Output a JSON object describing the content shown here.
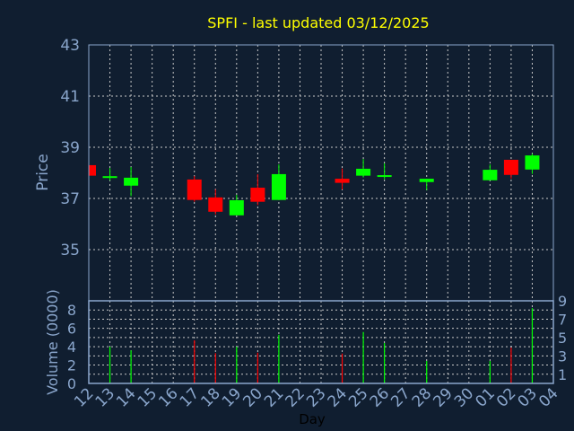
{
  "chart_data": {
    "type": "candlestick",
    "title": "SPFI - last updated 03/12/2025",
    "xlabel": "Day",
    "ylabel": "Price",
    "volume_ylabel": "Volume (0000)",
    "price_ylim": [
      33,
      43
    ],
    "price_ticks": [
      "35",
      "37",
      "39",
      "41",
      "43"
    ],
    "volume_ylim": [
      0,
      9
    ],
    "volume_ticks": [
      "0",
      "1",
      "2",
      "3",
      "4",
      "5",
      "6",
      "7",
      "8",
      "9"
    ],
    "x_ticks": [
      "12",
      "13",
      "14",
      "15",
      "16",
      "17",
      "18",
      "19",
      "20",
      "21",
      "22",
      "23",
      "24",
      "25",
      "26",
      "27",
      "28",
      "29",
      "30",
      "01",
      "02",
      "03",
      "04"
    ],
    "grid": true,
    "colors": {
      "up": "#00ff00",
      "down": "#ff0000",
      "grid": "#c8c8c8",
      "axis": "#8aa6cc",
      "background": "#101e30"
    },
    "candles": [
      {
        "day": "12",
        "open": 38.3,
        "high": 38.3,
        "low": 37.89,
        "close": 37.89,
        "volume": 0
      },
      {
        "day": "13",
        "open": 37.84,
        "high": 38.19,
        "low": 37.71,
        "close": 37.87,
        "volume": 4.0
      },
      {
        "day": "14",
        "open": 37.5,
        "high": 38.23,
        "low": 37.09,
        "close": 37.81,
        "volume": 3.6
      },
      {
        "day": "17",
        "open": 37.74,
        "high": 37.88,
        "low": 36.87,
        "close": 36.94,
        "volume": 4.7
      },
      {
        "day": "18",
        "open": 37.04,
        "high": 37.36,
        "low": 36.37,
        "close": 36.48,
        "volume": 3.3
      },
      {
        "day": "19",
        "open": 36.34,
        "high": 37.14,
        "low": 36.34,
        "close": 36.93,
        "volume": 4.0
      },
      {
        "day": "20",
        "open": 37.42,
        "high": 37.95,
        "low": 36.74,
        "close": 36.87,
        "volume": 3.35
      },
      {
        "day": "21",
        "open": 36.94,
        "high": 38.33,
        "low": 36.94,
        "close": 37.95,
        "volume": 5.3
      },
      {
        "day": "24",
        "open": 37.77,
        "high": 38.17,
        "low": 37.35,
        "close": 37.61,
        "volume": 3.25
      },
      {
        "day": "25",
        "open": 37.89,
        "high": 38.54,
        "low": 37.82,
        "close": 38.16,
        "volume": 5.6
      },
      {
        "day": "26",
        "open": 37.85,
        "high": 38.37,
        "low": 37.75,
        "close": 37.91,
        "volume": 4.4
      },
      {
        "day": "28",
        "open": 37.64,
        "high": 37.77,
        "low": 37.33,
        "close": 37.77,
        "volume": 2.45
      },
      {
        "day": "01",
        "open": 37.71,
        "high": 38.33,
        "low": 37.71,
        "close": 38.12,
        "volume": 2.45
      },
      {
        "day": "02",
        "open": 38.51,
        "high": 38.51,
        "low": 37.77,
        "close": 37.92,
        "volume": 3.9
      },
      {
        "day": "03",
        "open": 38.13,
        "high": 38.75,
        "low": 37.96,
        "close": 38.68,
        "volume": 8.2
      }
    ]
  }
}
